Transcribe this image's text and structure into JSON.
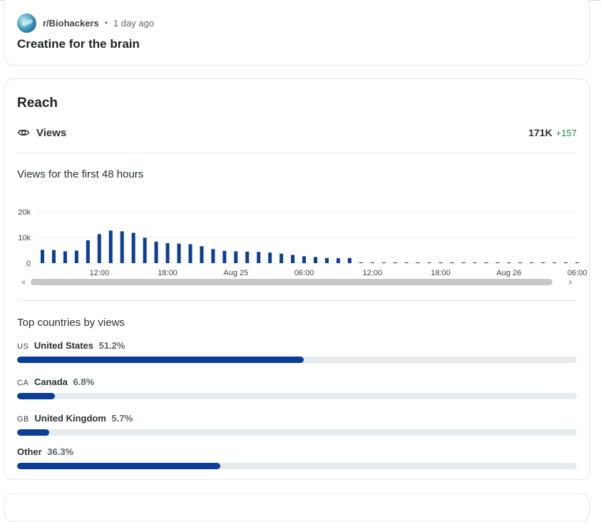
{
  "post": {
    "subreddit": "r/Biohackers",
    "separator": "•",
    "time_ago": "1 day ago",
    "title": "Creatine for the brain"
  },
  "reach": {
    "title": "Reach",
    "views_label": "Views",
    "views_total": "171K",
    "views_delta": "+157",
    "icons": {
      "views": "eye-icon",
      "scroll_left": "arrow-left-icon",
      "scroll_right": "arrow-right-icon"
    }
  },
  "chart_data": {
    "type": "bar",
    "title": "Views for the first 48 hours",
    "ylim": [
      0,
      20000
    ],
    "y_ticks": [
      {
        "value": 0,
        "label": "0"
      },
      {
        "value": 10000,
        "label": "10k"
      },
      {
        "value": 20000,
        "label": "20k"
      }
    ],
    "x_tick_labels": [
      "12:00",
      "18:00",
      "Aug 25",
      "06:00",
      "12:00",
      "18:00",
      "Aug 26",
      "06:00"
    ],
    "x_tick_bar_index": [
      5,
      11,
      17,
      23,
      29,
      35,
      41,
      47
    ],
    "values": [
      5200,
      5100,
      4600,
      4900,
      8900,
      11300,
      12700,
      12400,
      11800,
      9900,
      8400,
      7800,
      7600,
      7400,
      6600,
      5500,
      4800,
      4600,
      4500,
      4400,
      4100,
      3700,
      3200,
      2700,
      2400,
      2000,
      1900,
      2000,
      200,
      200,
      200,
      200,
      200,
      200,
      200,
      200,
      200,
      200,
      200,
      200,
      200,
      200,
      200,
      200,
      200,
      200,
      200,
      200
    ],
    "bar_color": "#0b3f97",
    "grid": true
  },
  "countries": {
    "heading": "Top countries by views",
    "items": [
      {
        "code": "US",
        "name": "United States",
        "pct_label": "51.2%",
        "value": 51.2
      },
      {
        "code": "CA",
        "name": "Canada",
        "pct_label": "6.8%",
        "value": 6.8
      },
      {
        "code": "GB",
        "name": "United Kingdom",
        "pct_label": "5.7%",
        "value": 5.7
      },
      {
        "code": "",
        "name": "Other",
        "pct_label": "36.3%",
        "value": 36.3
      }
    ]
  }
}
